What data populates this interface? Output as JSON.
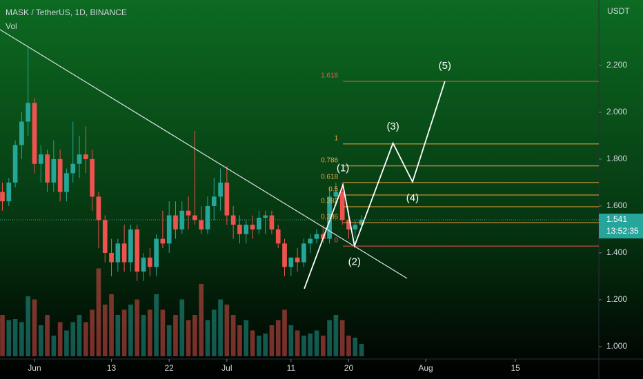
{
  "chart_data": {
    "type": "candlestick",
    "title": "MASK / TetherUS, 1D, BINANCE",
    "volume_label": "Vol",
    "currency": "USDT",
    "up_color": "#26a69a",
    "down_color": "#ef5350",
    "x": [
      0,
      1,
      2,
      3,
      4,
      5,
      6,
      7,
      8,
      9,
      10,
      11,
      12,
      13,
      14,
      15,
      16,
      17,
      18,
      19,
      20,
      21,
      22,
      23,
      24,
      25,
      26,
      27,
      28,
      29,
      30,
      31,
      32,
      33,
      34,
      35,
      36,
      37,
      38,
      39,
      40,
      41,
      42,
      43,
      44,
      45,
      46,
      47,
      48,
      49,
      50,
      51,
      52,
      53,
      54,
      55,
      56
    ],
    "open": [
      1.66,
      1.62,
      1.7,
      1.86,
      1.96,
      2.04,
      1.78,
      1.82,
      1.7,
      1.8,
      1.66,
      1.74,
      1.78,
      1.82,
      1.8,
      1.64,
      1.54,
      1.4,
      1.36,
      1.44,
      1.36,
      1.5,
      1.32,
      1.38,
      1.34,
      1.46,
      1.44,
      1.56,
      1.5,
      1.58,
      1.56,
      1.54,
      1.5,
      1.6,
      1.64,
      1.7,
      1.56,
      1.52,
      1.48,
      1.52,
      1.5,
      1.55,
      1.56,
      1.5,
      1.44,
      1.34,
      1.38,
      1.36,
      1.44,
      1.46,
      1.48,
      1.46,
      1.64,
      1.66,
      1.54,
      1.5,
      1.52
    ],
    "high": [
      1.7,
      1.72,
      1.88,
      2.0,
      2.28,
      2.06,
      1.86,
      1.84,
      1.88,
      1.84,
      1.76,
      1.96,
      1.9,
      1.94,
      1.84,
      1.66,
      1.56,
      1.46,
      1.46,
      1.52,
      1.52,
      1.52,
      1.4,
      1.42,
      1.48,
      1.58,
      1.62,
      1.62,
      1.62,
      1.64,
      1.92,
      1.6,
      1.64,
      1.72,
      1.76,
      1.77,
      1.6,
      1.56,
      1.54,
      1.56,
      1.58,
      1.58,
      1.58,
      1.52,
      1.46,
      1.38,
      1.42,
      1.46,
      1.48,
      1.5,
      1.52,
      1.68,
      1.7,
      1.7,
      1.58,
      1.54,
      1.56
    ],
    "low": [
      1.58,
      1.6,
      1.68,
      1.8,
      1.9,
      1.74,
      1.7,
      1.66,
      1.66,
      1.62,
      1.62,
      1.7,
      1.72,
      1.74,
      1.58,
      1.42,
      1.36,
      1.3,
      1.32,
      1.32,
      1.32,
      1.28,
      1.28,
      1.3,
      1.3,
      1.42,
      1.4,
      1.46,
      1.48,
      1.5,
      1.52,
      1.48,
      1.48,
      1.54,
      1.58,
      1.52,
      1.46,
      1.44,
      1.44,
      1.46,
      1.48,
      1.48,
      1.48,
      1.42,
      1.3,
      1.3,
      1.32,
      1.34,
      1.4,
      1.44,
      1.44,
      1.44,
      1.6,
      1.52,
      1.46,
      1.46,
      1.5
    ],
    "close": [
      1.62,
      1.7,
      1.86,
      1.96,
      2.04,
      1.78,
      1.82,
      1.7,
      1.8,
      1.66,
      1.74,
      1.78,
      1.82,
      1.8,
      1.64,
      1.54,
      1.4,
      1.36,
      1.44,
      1.36,
      1.5,
      1.32,
      1.38,
      1.34,
      1.46,
      1.44,
      1.56,
      1.5,
      1.58,
      1.56,
      1.54,
      1.5,
      1.6,
      1.64,
      1.7,
      1.56,
      1.52,
      1.48,
      1.52,
      1.5,
      1.55,
      1.56,
      1.5,
      1.44,
      1.34,
      1.38,
      1.36,
      1.44,
      1.46,
      1.48,
      1.46,
      1.64,
      1.66,
      1.54,
      1.5,
      1.52,
      1.541
    ],
    "volume": [
      40,
      35,
      36,
      33,
      58,
      55,
      30,
      40,
      20,
      33,
      25,
      33,
      40,
      33,
      45,
      85,
      50,
      60,
      40,
      45,
      50,
      55,
      40,
      45,
      60,
      45,
      30,
      40,
      55,
      35,
      40,
      70,
      35,
      45,
      55,
      50,
      40,
      30,
      35,
      25,
      20,
      22,
      30,
      35,
      45,
      30,
      25,
      20,
      22,
      25,
      20,
      35,
      40,
      35,
      20,
      18,
      12
    ],
    "vlim": [
      0,
      100
    ],
    "xlim": [
      -0.377,
      93.0
    ],
    "ylim": [
      0.95,
      2.479
    ],
    "yticks": [
      {
        "value": 1.0,
        "label": "1.000"
      },
      {
        "value": 1.2,
        "label": "1.200"
      },
      {
        "value": 1.4,
        "label": "1.400"
      },
      {
        "value": 1.6,
        "label": "1.600"
      },
      {
        "value": 1.8,
        "label": "1.800"
      },
      {
        "value": 2.0,
        "label": "2.000"
      },
      {
        "value": 2.2,
        "label": "2.200"
      }
    ],
    "xticks": [
      {
        "value": 5,
        "label": "Jun"
      },
      {
        "value": 17,
        "label": "13"
      },
      {
        "value": 26,
        "label": "22"
      },
      {
        "value": 35,
        "label": "Jul"
      },
      {
        "value": 45,
        "label": "11"
      },
      {
        "value": 54,
        "label": "20"
      },
      {
        "value": 66,
        "label": "Aug"
      },
      {
        "value": 80,
        "label": "15"
      }
    ],
    "last_price": 1.541,
    "countdown": "13:52:35",
    "trendline": {
      "x": [
        -0.4,
        63.1
      ],
      "y": [
        2.353,
        1.291
      ]
    },
    "fib_levels": [
      {
        "ratio": 1.618,
        "price": 2.132,
        "color": "#ef5350"
      },
      {
        "ratio": 1,
        "price": 1.865,
        "color": "#f7a13b"
      },
      {
        "ratio": 0.786,
        "price": 1.771,
        "color": "#f7a13b"
      },
      {
        "ratio": 0.618,
        "price": 1.7,
        "color": "#f7a13b"
      },
      {
        "ratio": 0.5,
        "price": 1.647,
        "color": "#f7a13b"
      },
      {
        "ratio": 0.382,
        "price": 1.597,
        "color": "#f7a13b"
      },
      {
        "ratio": 0.236,
        "price": 1.529,
        "color": "#f7a13b"
      },
      {
        "ratio": 0,
        "price": 1.429,
        "color": "#ef5350"
      }
    ],
    "wave": {
      "x": [
        47.07,
        53.1,
        54.9,
        60.9,
        63.95,
        68.99
      ],
      "y": [
        1.247,
        1.69,
        1.43,
        1.868,
        1.703,
        2.132
      ],
      "labels": [
        null,
        "(1)",
        "(2)",
        "(3)",
        "(4)",
        "(5)"
      ]
    }
  }
}
